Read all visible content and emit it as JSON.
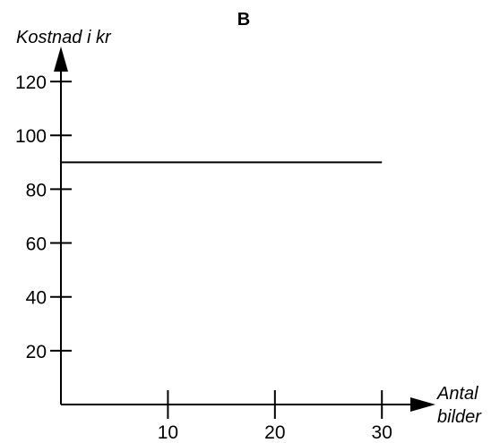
{
  "chart_data": {
    "type": "line",
    "title": "B",
    "ylabel": "Kostnad i kr",
    "xlabel_lines": [
      "Antal",
      "bilder"
    ],
    "xlim": [
      0,
      34
    ],
    "ylim": [
      0,
      132
    ],
    "xticks": [
      10,
      20,
      30
    ],
    "yticks": [
      20,
      40,
      60,
      80,
      100,
      120
    ],
    "grid": false,
    "series": [
      {
        "x": [
          0,
          30
        ],
        "y": [
          90,
          90
        ]
      }
    ]
  }
}
